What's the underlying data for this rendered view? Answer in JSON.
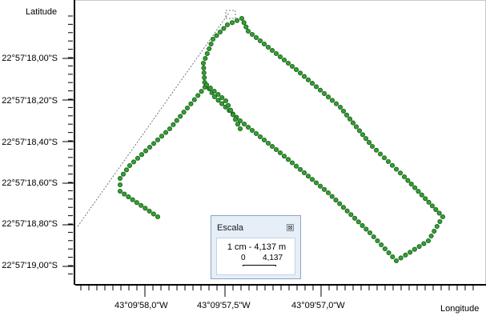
{
  "axes": {
    "y_title": "Latitude",
    "x_title": "Longitude",
    "y_ticks": [
      "22°57'18,00\"S",
      "22°57'18,20\"S",
      "22°57'18,40\"S",
      "22°57'18,60\"S",
      "22°57'18,80\"S",
      "22°57'19,00\"S"
    ],
    "x_ticks": [
      "43°09'58,0\"W",
      "43°09'57,5\"W",
      "43°09'57,0\"W"
    ]
  },
  "scale_panel": {
    "title": "Escala",
    "close_glyph": "⊠",
    "text": "1 cm - 4,137 m",
    "zero": "0",
    "value": "4,137"
  },
  "colors": {
    "track_fill": "#2fa32f",
    "track_stroke": "#1f5e1f",
    "dash_line": "#555555"
  },
  "track_vertices": [
    [
      197,
      270
    ],
    [
      150,
      238
    ],
    [
      150,
      222
    ],
    [
      162,
      206
    ],
    [
      212,
      160
    ],
    [
      256,
      108
    ],
    [
      254,
      78
    ],
    [
      266,
      48
    ],
    [
      284,
      30
    ],
    [
      302,
      22
    ],
    [
      310,
      38
    ],
    [
      370,
      86
    ],
    [
      425,
      133
    ],
    [
      465,
      182
    ],
    [
      505,
      220
    ],
    [
      553,
      270
    ],
    [
      535,
      300
    ],
    [
      495,
      325
    ],
    [
      462,
      290
    ],
    [
      410,
      240
    ],
    [
      350,
      190
    ],
    [
      300,
      150
    ],
    [
      268,
      120
    ],
    [
      258,
      105
    ],
    [
      282,
      125
    ],
    [
      300,
      160
    ]
  ],
  "dashed_line": [
    [
      97,
      282
    ],
    [
      286,
      15
    ]
  ]
}
